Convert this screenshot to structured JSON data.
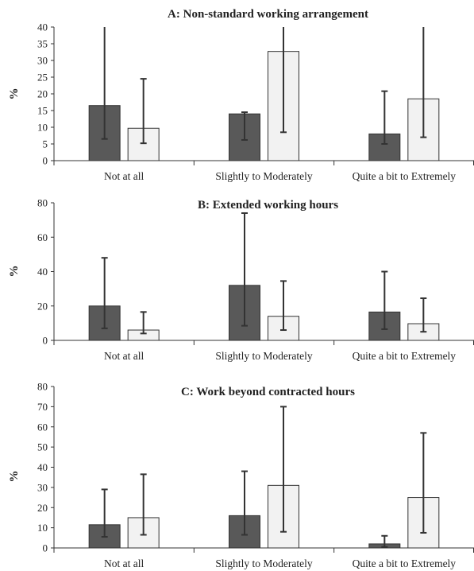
{
  "chart_data": [
    {
      "type": "bar",
      "title": "A: Non-standard working arrangement",
      "ylabel": "%",
      "xlabel": "",
      "ylim": [
        0,
        40
      ],
      "yticks": [
        0,
        5,
        10,
        15,
        20,
        25,
        30,
        35,
        40
      ],
      "categories": [
        "Not at all",
        "Slightly to Moderately",
        "Quite a bit to Extremely"
      ],
      "series": [
        {
          "color": "#595959",
          "values": [
            16.5,
            14,
            8
          ],
          "err_low": [
            6.5,
            6.2,
            5
          ],
          "err_high": [
            40,
            14.5,
            20.8
          ]
        },
        {
          "color": "#f2f2f2",
          "values": [
            9.7,
            32.7,
            18.5
          ],
          "err_low": [
            5.2,
            8.5,
            7
          ],
          "err_high": [
            24.5,
            40,
            40
          ]
        }
      ]
    },
    {
      "type": "bar",
      "title": "B: Extended working hours",
      "ylabel": "%",
      "xlabel": "",
      "ylim": [
        0,
        80
      ],
      "yticks": [
        0,
        20,
        40,
        60,
        80
      ],
      "categories": [
        "Not at all",
        "Slightly to Moderately",
        "Quite a bit to Extremely"
      ],
      "series": [
        {
          "color": "#595959",
          "values": [
            20,
            32,
            16.5
          ],
          "err_low": [
            7,
            8.5,
            6.5
          ],
          "err_high": [
            48,
            74,
            40
          ]
        },
        {
          "color": "#f2f2f2",
          "values": [
            6,
            14,
            9.7
          ],
          "err_low": [
            4,
            6,
            5
          ],
          "err_high": [
            16.5,
            34.5,
            24.5
          ]
        }
      ]
    },
    {
      "type": "bar",
      "title": "C: Work beyond contracted hours",
      "ylabel": "%",
      "xlabel": "",
      "ylim": [
        0,
        80
      ],
      "yticks": [
        0,
        10,
        20,
        30,
        40,
        50,
        60,
        70,
        80
      ],
      "categories": [
        "Not at all",
        "Slightly to Moderately",
        "Quite a bit to Extremely"
      ],
      "series": [
        {
          "color": "#595959",
          "values": [
            11.5,
            16,
            2
          ],
          "err_low": [
            5.5,
            6.5,
            0.5
          ],
          "err_high": [
            29,
            38,
            6
          ]
        },
        {
          "color": "#f2f2f2",
          "values": [
            15,
            31,
            25
          ],
          "err_low": [
            6.5,
            8,
            7.5
          ],
          "err_high": [
            36.5,
            70,
            57
          ]
        }
      ]
    }
  ]
}
